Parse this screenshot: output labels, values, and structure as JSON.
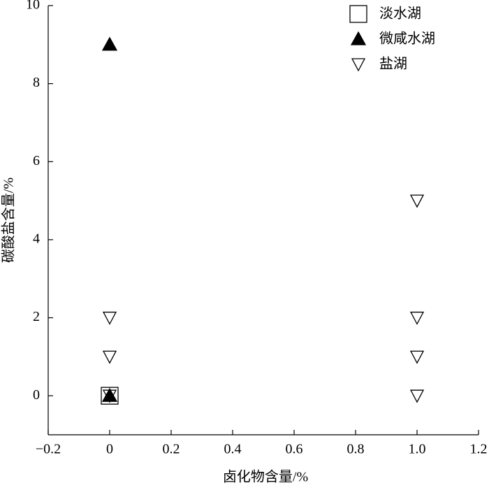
{
  "chart_data": {
    "type": "scatter",
    "x_label": "卤化物含量/%",
    "y_label": "碳酸盐含量/%",
    "xlim": [
      -0.2,
      1.2
    ],
    "xticks": [
      {
        "value": -0.2,
        "label": "−0.2"
      },
      0,
      0.2,
      0.4,
      0.6,
      0.8,
      {
        "value": 1.0,
        "label": "1.0"
      },
      1.2
    ],
    "ylim": [
      -1,
      10
    ],
    "yticks": [
      0,
      2,
      4,
      6,
      8,
      10
    ],
    "legend": "upper-right",
    "series": [
      {
        "name": "淡水湖",
        "color": "#000000",
        "marker": "square",
        "filled": false,
        "x": [
          0
        ],
        "values": [
          0
        ]
      },
      {
        "name": "微咸水湖",
        "color": "#000000",
        "marker": "triangle-up",
        "filled": true,
        "x": [
          0,
          0
        ],
        "values": [
          9,
          0
        ]
      },
      {
        "name": "盐湖",
        "color": "#000000",
        "marker": "triangle-down",
        "filled": false,
        "x": [
          0,
          0,
          0,
          1,
          1,
          1,
          1
        ],
        "values": [
          2,
          1,
          0,
          5,
          2,
          1,
          0
        ]
      }
    ]
  }
}
